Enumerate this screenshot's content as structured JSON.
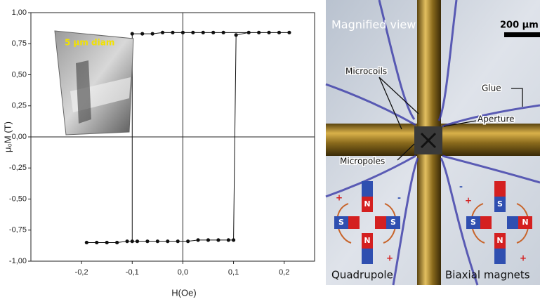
{
  "chart_data": {
    "type": "line",
    "x_label": "H(Oe)",
    "y_label": "μ₀M (T)",
    "inset_label": "5 μm diam",
    "x": [
      -0.19,
      -0.17,
      -0.15,
      -0.13,
      -0.11,
      -0.09,
      -0.07,
      -0.05,
      -0.03,
      -0.01,
      0.01,
      0.03,
      0.05,
      0.07,
      0.09,
      0.1,
      0.105,
      0.13,
      0.15,
      0.17,
      0.19,
      0.21,
      0.08,
      0.06,
      0.04,
      0.02,
      0.0,
      -0.02,
      -0.04,
      -0.06,
      -0.08,
      -0.1,
      -0.1
    ],
    "values": [
      -0.85,
      -0.85,
      -0.85,
      -0.85,
      -0.84,
      -0.84,
      -0.84,
      -0.84,
      -0.84,
      -0.84,
      -0.84,
      -0.83,
      -0.83,
      -0.83,
      -0.83,
      -0.83,
      0.82,
      0.84,
      0.84,
      0.84,
      0.84,
      0.84,
      0.84,
      0.84,
      0.84,
      0.84,
      0.84,
      0.84,
      0.84,
      0.83,
      0.83,
      0.83,
      -0.84
    ],
    "color": "#111111",
    "xlim": [
      -0.3,
      0.26
    ],
    "ylim": [
      -1,
      1
    ],
    "xticks": [
      {
        "value": -0.2,
        "label": "-0,2"
      },
      {
        "value": -0.1,
        "label": "-0,1"
      },
      {
        "value": 0,
        "label": "0,0"
      },
      {
        "value": 0.1,
        "label": "0,1"
      },
      {
        "value": 0.2,
        "label": "0,2"
      }
    ],
    "yticks": [
      {
        "value": 1,
        "label": "1,00"
      },
      {
        "value": 0.75,
        "label": "0,75"
      },
      {
        "value": 0.5,
        "label": "0,50"
      },
      {
        "value": 0.25,
        "label": "0,25"
      },
      {
        "value": 0,
        "label": "0,00"
      },
      {
        "value": -0.25,
        "label": "-0,25"
      },
      {
        "value": -0.5,
        "label": "-0,50"
      },
      {
        "value": -0.75,
        "label": "-0,75"
      },
      {
        "value": -1,
        "label": "-1,00"
      }
    ],
    "grid": false
  },
  "image": {
    "title": "Magnified view",
    "scale_bar": "200 μm",
    "labels": [
      "Microcoils",
      "Glue",
      "Aperture",
      "Micropoles"
    ],
    "quadrupole": {
      "caption": "Quadrupole",
      "poles": [
        "N",
        "S",
        "S",
        "N"
      ],
      "signs": [
        "+",
        "-",
        "+"
      ]
    },
    "biaxial": {
      "caption": "Biaxial magnets",
      "poles": [
        "S",
        "S",
        "N",
        "N"
      ],
      "signs": [
        "-",
        "+",
        "+"
      ]
    }
  }
}
